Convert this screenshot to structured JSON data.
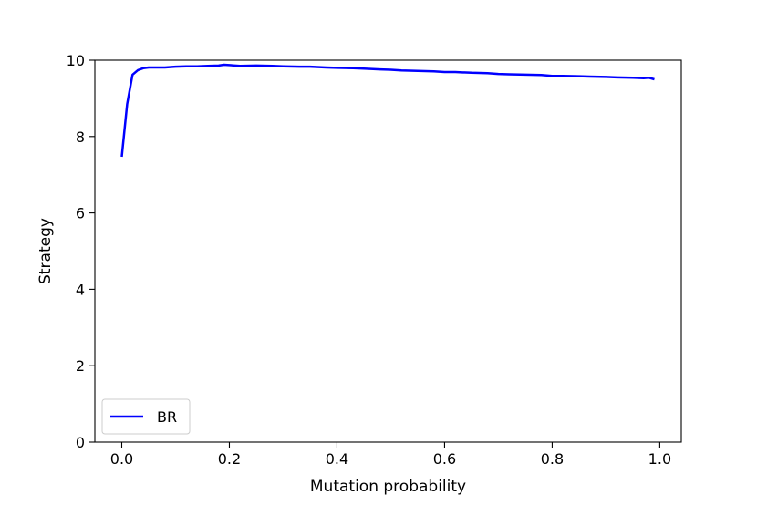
{
  "chart_data": {
    "type": "line",
    "title": "",
    "xlabel": "Mutation probability",
    "ylabel": "Strategy",
    "xlim": [
      -0.05,
      1.04
    ],
    "ylim": [
      0,
      10
    ],
    "xticks": [
      "0.0",
      "0.2",
      "0.4",
      "0.6",
      "0.8",
      "1.0"
    ],
    "xtick_values": [
      0.0,
      0.2,
      0.4,
      0.6,
      0.8,
      1.0
    ],
    "yticks": [
      "0",
      "2",
      "4",
      "6",
      "8",
      "10"
    ],
    "ytick_values": [
      0,
      2,
      4,
      6,
      8,
      10
    ],
    "grid": false,
    "legend_position": "lower-left",
    "series": [
      {
        "name": "BR",
        "color": "#0000ff",
        "x": [
          0.0,
          0.01,
          0.02,
          0.03,
          0.04,
          0.05,
          0.06,
          0.08,
          0.1,
          0.12,
          0.14,
          0.16,
          0.18,
          0.19,
          0.2,
          0.22,
          0.25,
          0.28,
          0.3,
          0.33,
          0.35,
          0.38,
          0.4,
          0.43,
          0.45,
          0.48,
          0.5,
          0.52,
          0.55,
          0.58,
          0.6,
          0.62,
          0.65,
          0.68,
          0.7,
          0.72,
          0.75,
          0.78,
          0.8,
          0.82,
          0.85,
          0.87,
          0.9,
          0.92,
          0.95,
          0.97,
          0.98,
          0.99
        ],
        "values": [
          7.47,
          8.85,
          9.62,
          9.74,
          9.79,
          9.81,
          9.81,
          9.81,
          9.83,
          9.84,
          9.84,
          9.85,
          9.86,
          9.88,
          9.87,
          9.85,
          9.86,
          9.85,
          9.84,
          9.83,
          9.83,
          9.81,
          9.8,
          9.79,
          9.78,
          9.76,
          9.75,
          9.73,
          9.72,
          9.71,
          9.69,
          9.69,
          9.67,
          9.66,
          9.64,
          9.63,
          9.62,
          9.61,
          9.59,
          9.59,
          9.58,
          9.57,
          9.56,
          9.55,
          9.54,
          9.53,
          9.54,
          9.5
        ]
      }
    ]
  }
}
